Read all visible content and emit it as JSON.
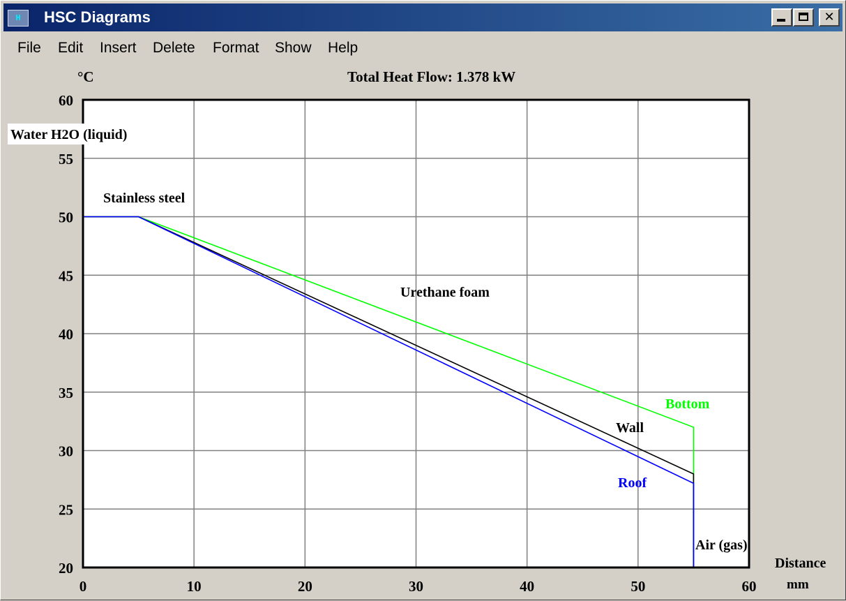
{
  "window": {
    "title": "HSC Diagrams",
    "icon_name": "hsc-app-icon",
    "icon_glyph": "H",
    "controls": {
      "minimize": "minimize-icon",
      "maximize": "maximize-icon",
      "close": "close-icon",
      "close_glyph": "✕"
    }
  },
  "menu": [
    "File",
    "Edit",
    "Insert",
    "Delete",
    "Format",
    "Show",
    "Help"
  ],
  "chart_data": {
    "type": "line",
    "title": "Total Heat Flow: 1.378 kW",
    "ylabel": "°C",
    "xlabel": "Distance",
    "xunit": "mm",
    "xlim": [
      0,
      60
    ],
    "ylim": [
      20,
      60
    ],
    "xticks": [
      0,
      10,
      20,
      30,
      40,
      50,
      60
    ],
    "yticks": [
      20,
      25,
      30,
      35,
      40,
      45,
      50,
      55,
      60
    ],
    "grid": true,
    "layer_labels": {
      "water": "Water H2O (liquid)",
      "steel": "Stainless steel",
      "foam": "Urethane foam",
      "air": "Air (gas)"
    },
    "series": [
      {
        "name": "Bottom",
        "color": "#00ff00",
        "x": [
          0,
          5,
          55,
          55
        ],
        "y": [
          50,
          50,
          32,
          20
        ]
      },
      {
        "name": "Wall",
        "color": "#000000",
        "x": [
          0,
          5,
          55,
          55
        ],
        "y": [
          50,
          50,
          28,
          20
        ]
      },
      {
        "name": "Roof",
        "color": "#0000ff",
        "x": [
          0,
          5,
          55,
          55
        ],
        "y": [
          50,
          50,
          27.2,
          20
        ]
      }
    ]
  }
}
